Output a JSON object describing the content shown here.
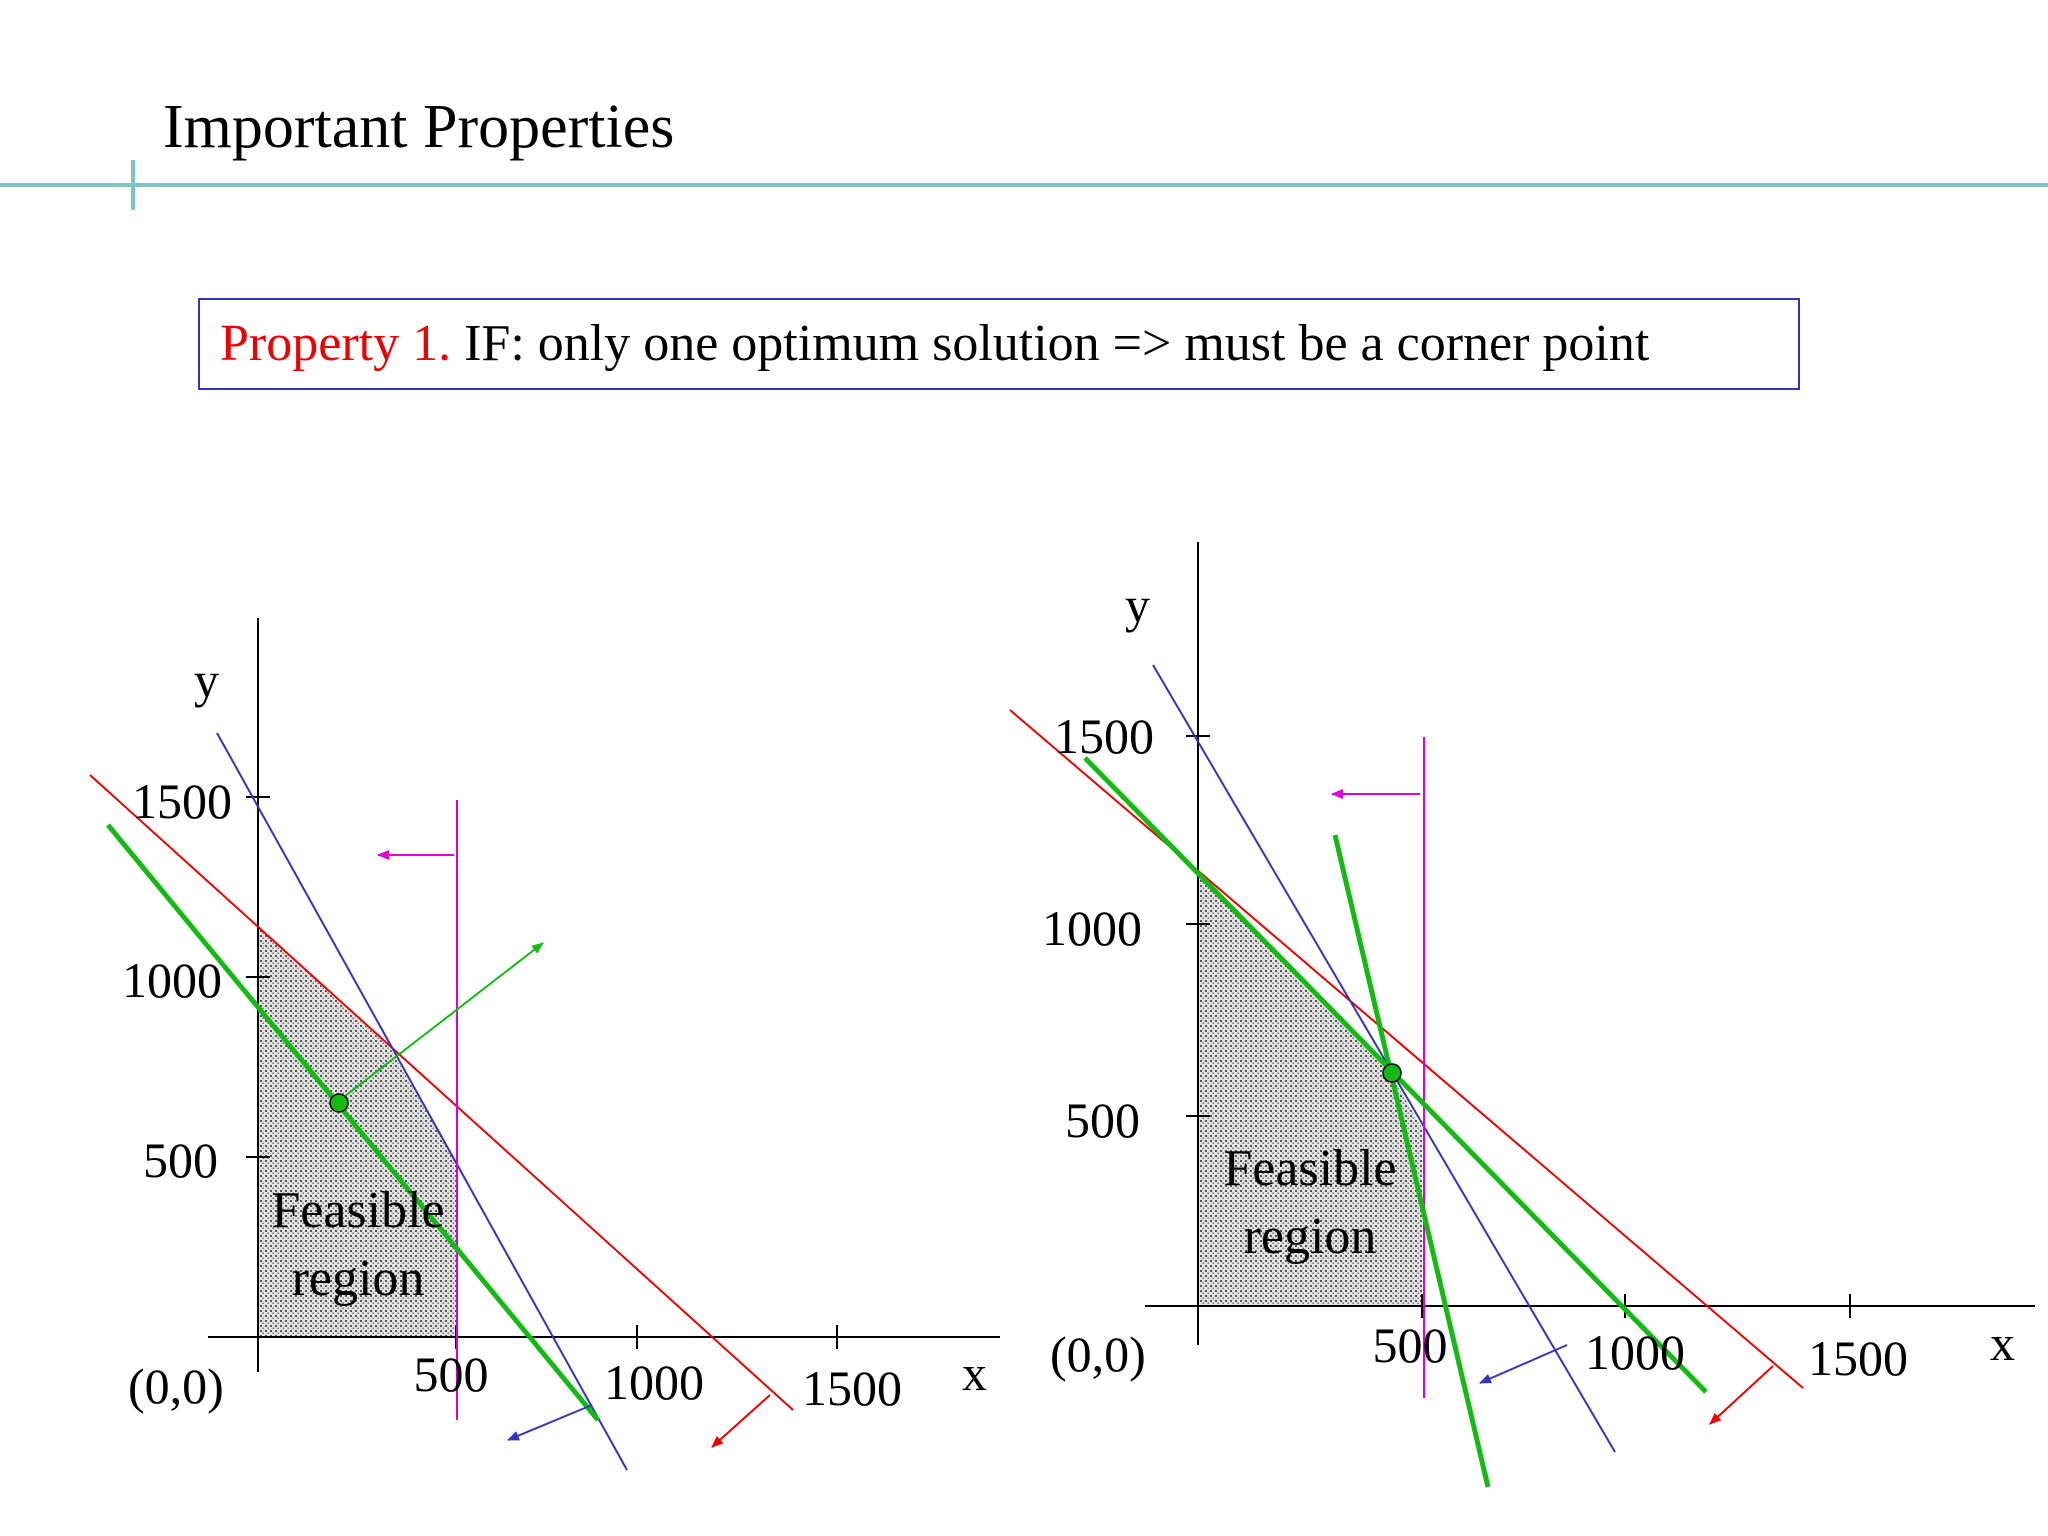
{
  "slide": {
    "title": "Important Properties",
    "property_label": "Property 1.",
    "property_text": " IF: only one optimum solution => must be a corner point"
  },
  "colors": {
    "accent_rule": "#7fc4c4",
    "box_border": "#3333bb",
    "property_label": "#ee0000",
    "constraint_red": "#ee0000",
    "constraint_blue": "#3333bb",
    "constraint_magenta": "#dd00dd",
    "objective_green": "#11bb11"
  },
  "diagrams": [
    {
      "axis_x": "x",
      "axis_y": "y",
      "origin": "(0,0)",
      "x_ticks": [
        "500",
        "1000",
        "1500"
      ],
      "y_ticks": [
        "500",
        "1000",
        "1500"
      ],
      "region_label": [
        "Feasible",
        "region"
      ]
    },
    {
      "axis_x": "x",
      "axis_y": "y",
      "origin": "(0,0)",
      "x_ticks": [
        "500",
        "1000",
        "1500"
      ],
      "y_ticks": [
        "500",
        "1000",
        "1500"
      ],
      "region_label": [
        "Feasible",
        "region"
      ]
    }
  ]
}
